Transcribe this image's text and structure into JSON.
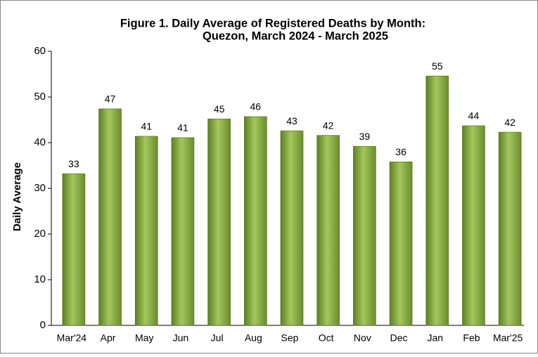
{
  "chart_data": {
    "type": "bar",
    "title": [
      "Figure 1. Daily Average of Registered Deaths by Month:",
      "Quezon, March 2024 - March 2025"
    ],
    "y_label": "Daily Average",
    "categories": [
      "Mar'24",
      "Apr",
      "May",
      "Jun",
      "Jul",
      "Aug",
      "Sep",
      "Oct",
      "Nov",
      "Dec",
      "Jan",
      "Feb",
      "Mar'25"
    ],
    "values": [
      33.2,
      47.4,
      41.4,
      41.1,
      45.2,
      45.7,
      42.6,
      41.6,
      39.2,
      35.8,
      54.6,
      43.7,
      42.3
    ],
    "value_labels": [
      "33",
      "47",
      "41",
      "41",
      "45",
      "46",
      "43",
      "42",
      "39",
      "36",
      "55",
      "44",
      "42"
    ],
    "color": "#8db04a",
    "ylim": [
      0,
      60
    ],
    "yticks": [
      0,
      10,
      20,
      30,
      40,
      50,
      60
    ],
    "grid": false
  }
}
